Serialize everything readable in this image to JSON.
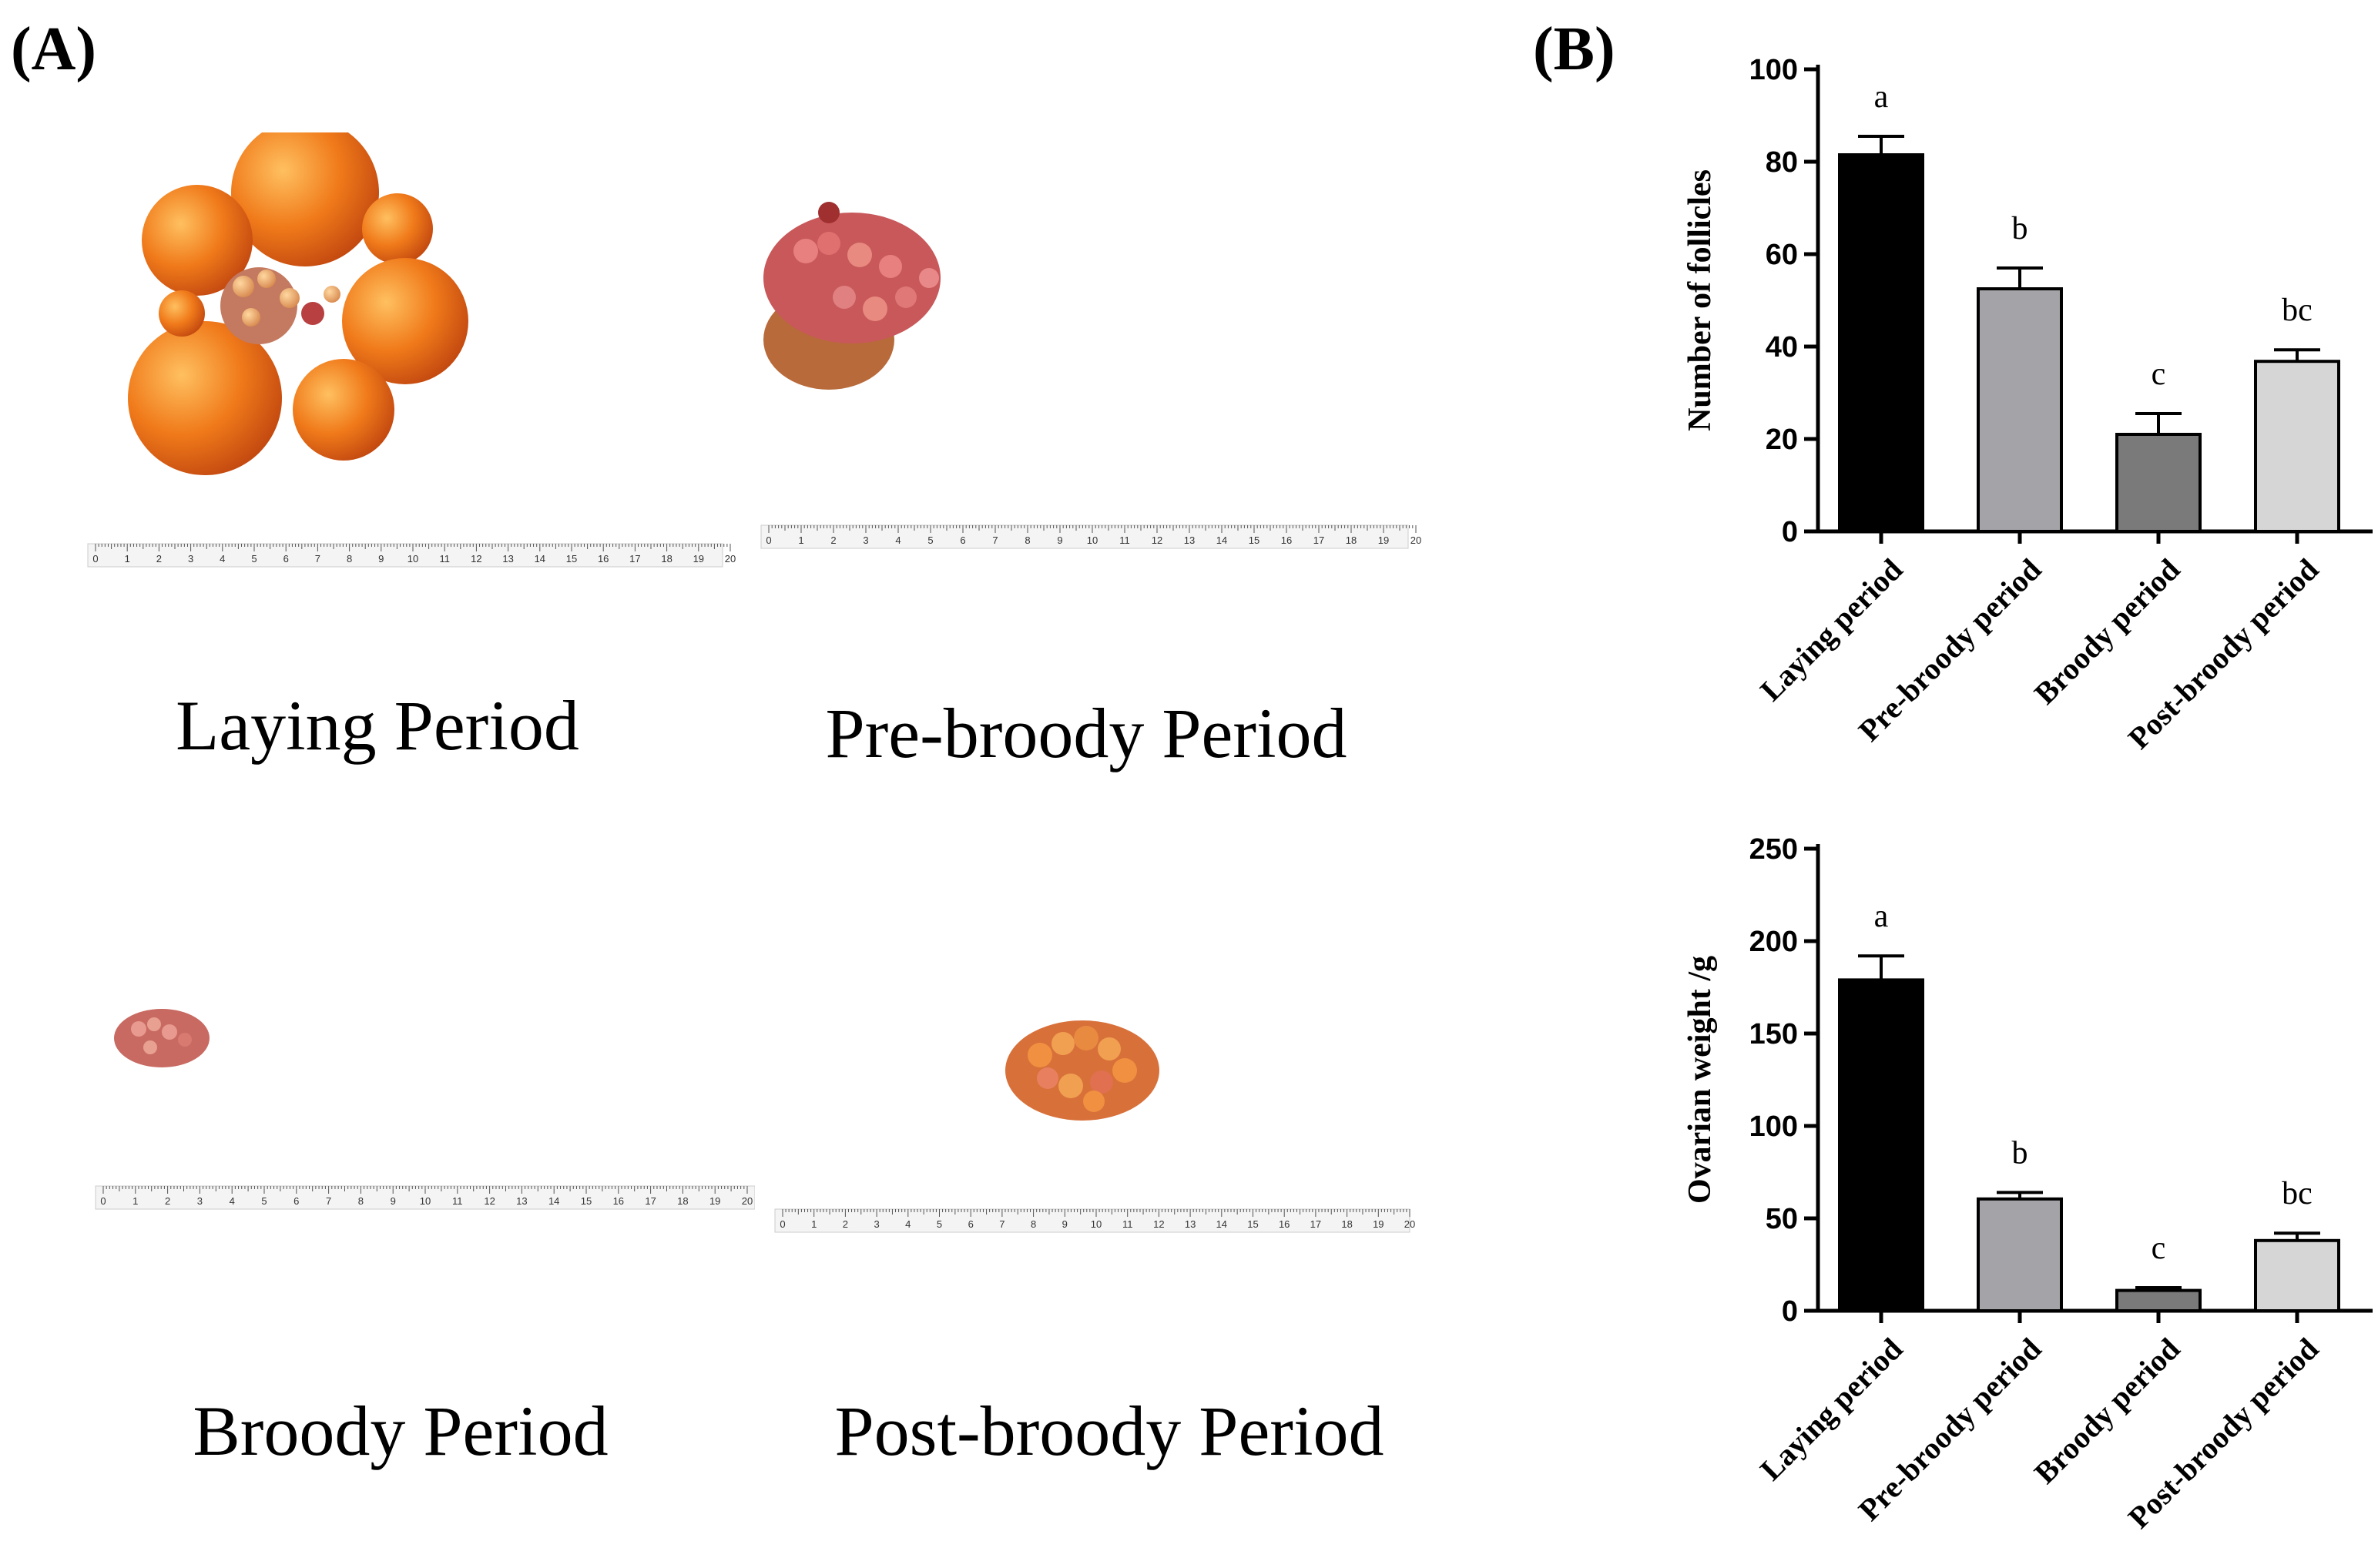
{
  "panel_a": {
    "label": "(A)",
    "photos": [
      {
        "caption": "Laying Period"
      },
      {
        "caption": "Pre-broody Period"
      },
      {
        "caption": "Broody Period"
      },
      {
        "caption": "Post-broody Period"
      }
    ],
    "ruler": {
      "marks": [
        "0",
        "1",
        "2",
        "3",
        "4",
        "5",
        "6",
        "7",
        "8",
        "9",
        "10",
        "11",
        "12",
        "13",
        "14",
        "15",
        "16",
        "17",
        "18",
        "19",
        "20"
      ]
    }
  },
  "panel_b": {
    "label": "(B)"
  },
  "colors": {
    "bar1": "#000000",
    "bar2": "#a3a3a8",
    "bar3": "#7a7a7a",
    "bar4": "#d6d6d6",
    "ovary_orange": "#f07a1a",
    "ovary_red": "#b84040"
  },
  "chart_data": [
    {
      "type": "bar",
      "categories": [
        "Laying period",
        "Pre-broody period",
        "Broody period",
        "Post-broody period"
      ],
      "values": [
        81.5,
        52.5,
        21,
        36.8
      ],
      "errors": [
        4,
        4.5,
        4.5,
        2.5
      ],
      "significance": [
        "a",
        "b",
        "c",
        "bc"
      ],
      "ylabel": "Number of follicles",
      "ylim": [
        0,
        100
      ],
      "yticks": [
        0,
        20,
        40,
        60,
        80,
        100
      ]
    },
    {
      "type": "bar",
      "categories": [
        "Laying period",
        "Pre-broody period",
        "Broody period",
        "Post-broody period"
      ],
      "values": [
        179,
        60.5,
        11,
        38
      ],
      "errors": [
        13,
        3.5,
        1.5,
        4
      ],
      "significance": [
        "a",
        "b",
        "c",
        "bc"
      ],
      "ylabel": "Ovarian weight /g",
      "ylim": [
        0,
        250
      ],
      "yticks": [
        0,
        50,
        100,
        150,
        200,
        250
      ]
    }
  ]
}
